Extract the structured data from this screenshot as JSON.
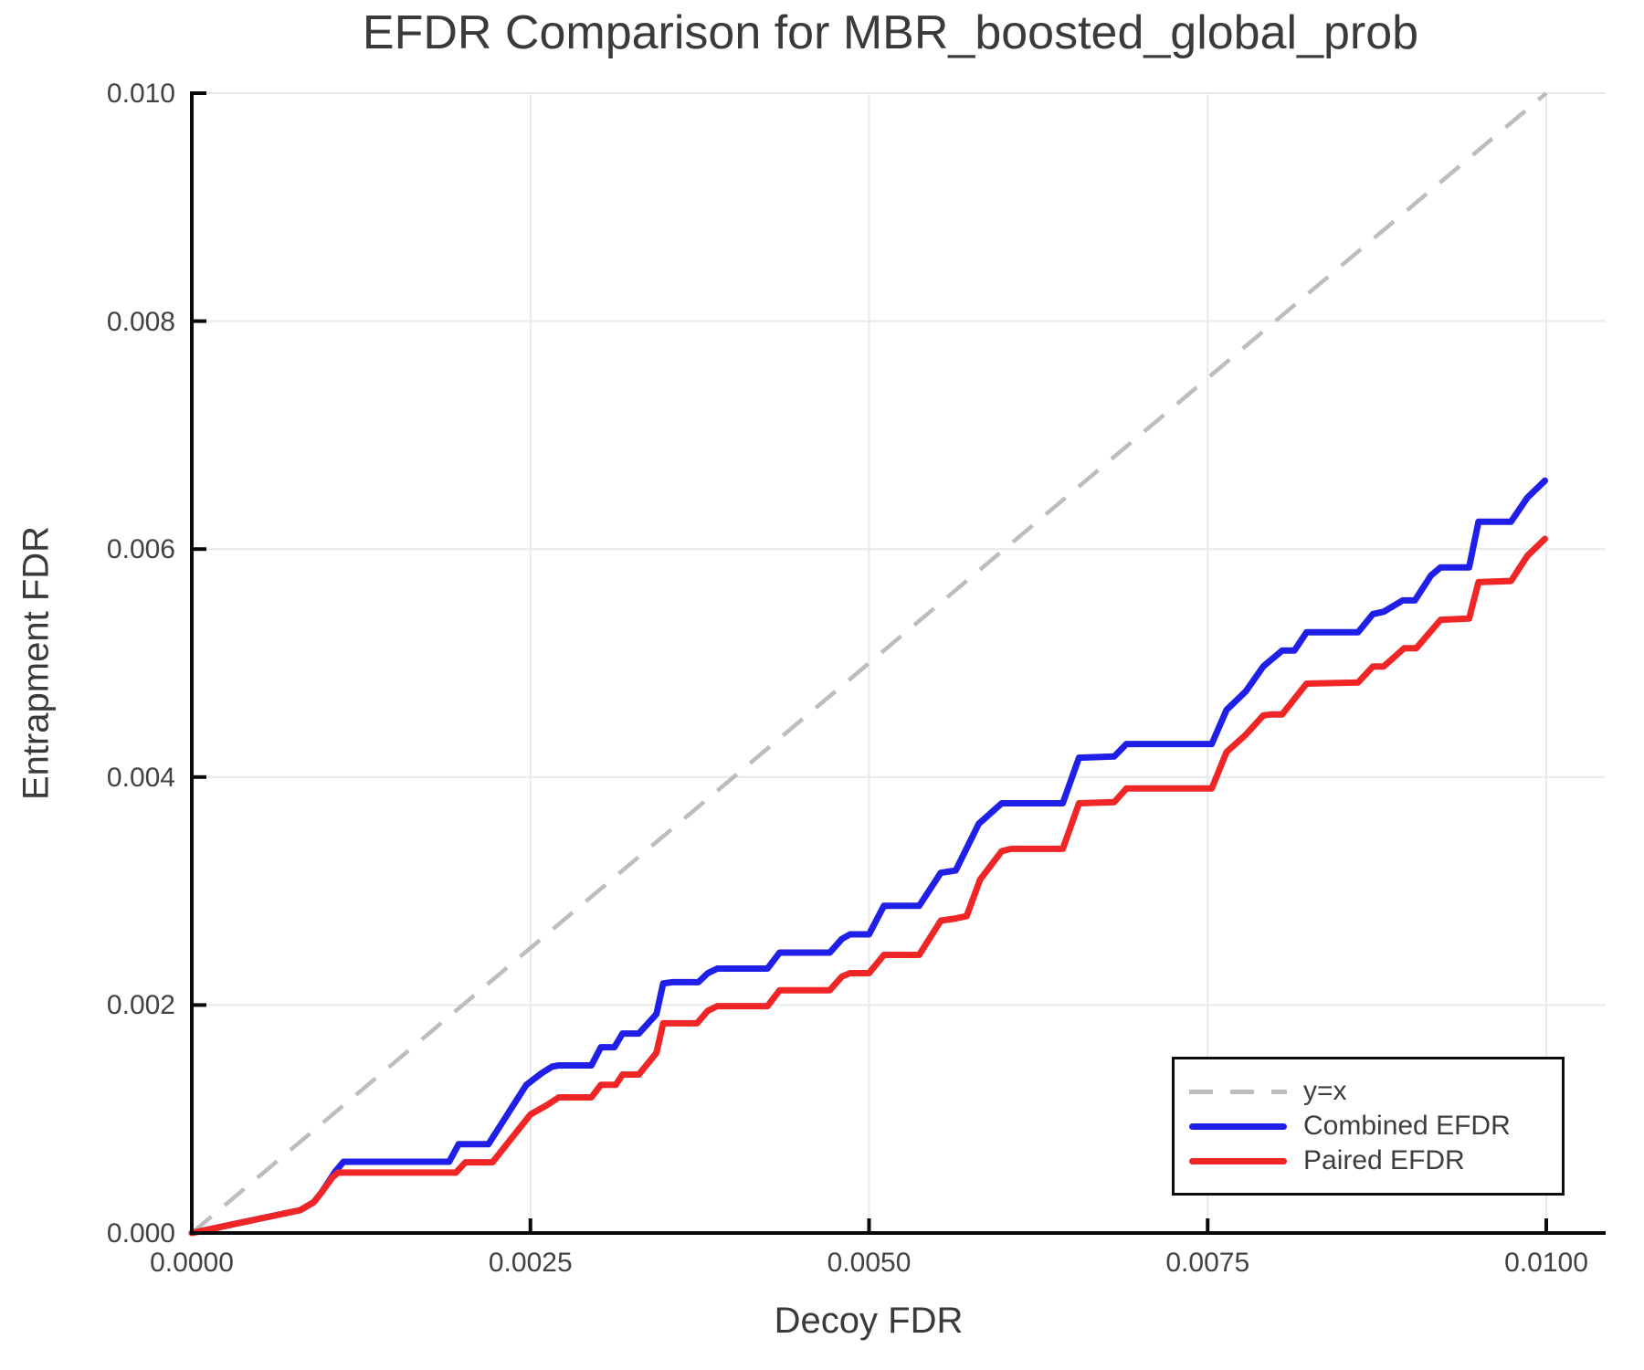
{
  "chart_data": {
    "type": "line",
    "title": "EFDR Comparison for MBR_boosted_global_prob",
    "xlabel": "Decoy FDR",
    "ylabel": "Entrapment FDR",
    "xlim": [
      0.0,
      0.01
    ],
    "ylim": [
      0.0,
      0.01
    ],
    "grid": true,
    "xticks": [
      0.0,
      0.0025,
      0.005,
      0.0075,
      0.01
    ],
    "xtick_labels": [
      "0.0000",
      "0.0025",
      "0.0050",
      "0.0075",
      "0.0100"
    ],
    "yticks": [
      0.0,
      0.002,
      0.004,
      0.006,
      0.008,
      0.01
    ],
    "ytick_labels": [
      "0.000",
      "0.002",
      "0.004",
      "0.006",
      "0.008",
      "0.010"
    ],
    "colors": {
      "grid": "#e9e9e9",
      "spine": "#0a0a0a",
      "reference": "#bdbdbd",
      "combined": "#1f1fe8",
      "paired": "#f02626"
    },
    "legend": {
      "position": "lower right",
      "entries": [
        {
          "label": "y=x"
        },
        {
          "label": "Combined EFDR"
        },
        {
          "label": "Paired EFDR"
        }
      ]
    },
    "series": [
      {
        "name": "y=x",
        "style": "dashed",
        "color": "#bdbdbd",
        "width": 4.5,
        "dash": "28 19",
        "points": [
          [
            0.0,
            0.0
          ],
          [
            0.01,
            0.01
          ]
        ]
      },
      {
        "name": "Combined EFDR",
        "style": "solid",
        "color": "#1f1fe8",
        "width": 7,
        "points": [
          [
            0.0,
            0.0
          ],
          [
            0.0008,
            0.0002
          ],
          [
            0.0009,
            0.00027
          ],
          [
            0.00096,
            0.00036
          ],
          [
            0.00106,
            0.00054
          ],
          [
            0.00112,
            0.000625
          ],
          [
            0.0019,
            0.000625
          ],
          [
            0.00197,
            0.00078
          ],
          [
            0.00219,
            0.00078
          ],
          [
            0.00247,
            0.0013
          ],
          [
            0.00258,
            0.0014
          ],
          [
            0.00266,
            0.00146
          ],
          [
            0.00271,
            0.00147
          ],
          [
            0.00295,
            0.00147
          ],
          [
            0.00302,
            0.00163
          ],
          [
            0.00312,
            0.00163
          ],
          [
            0.00318,
            0.00175
          ],
          [
            0.0033,
            0.00175
          ],
          [
            0.00343,
            0.00192
          ],
          [
            0.00348,
            0.00219
          ],
          [
            0.00355,
            0.0022
          ],
          [
            0.00374,
            0.0022
          ],
          [
            0.00381,
            0.00228
          ],
          [
            0.00388,
            0.00232
          ],
          [
            0.00425,
            0.00232
          ],
          [
            0.00434,
            0.00246
          ],
          [
            0.00471,
            0.00246
          ],
          [
            0.0048,
            0.00258
          ],
          [
            0.00486,
            0.00262
          ],
          [
            0.005,
            0.00262
          ],
          [
            0.00511,
            0.00287
          ],
          [
            0.00537,
            0.00287
          ],
          [
            0.00553,
            0.00316
          ],
          [
            0.00564,
            0.00318
          ],
          [
            0.00581,
            0.00359
          ],
          [
            0.00598,
            0.00377
          ],
          [
            0.00643,
            0.00377
          ],
          [
            0.00655,
            0.00417
          ],
          [
            0.00681,
            0.00418
          ],
          [
            0.0069,
            0.00429
          ],
          [
            0.00753,
            0.00429
          ],
          [
            0.00764,
            0.00459
          ],
          [
            0.00778,
            0.00475
          ],
          [
            0.00791,
            0.00497
          ],
          [
            0.00805,
            0.00511
          ],
          [
            0.00814,
            0.00511
          ],
          [
            0.00823,
            0.00527
          ],
          [
            0.00861,
            0.00527
          ],
          [
            0.00872,
            0.00543
          ],
          [
            0.0088,
            0.00545
          ],
          [
            0.00894,
            0.00555
          ],
          [
            0.00903,
            0.00555
          ],
          [
            0.00915,
            0.00577
          ],
          [
            0.00922,
            0.00584
          ],
          [
            0.00943,
            0.00584
          ],
          [
            0.0095,
            0.00624
          ],
          [
            0.00974,
            0.00624
          ],
          [
            0.00986,
            0.00645
          ],
          [
            0.00999,
            0.0066
          ]
        ]
      },
      {
        "name": "Paired EFDR",
        "style": "solid",
        "color": "#f02626",
        "width": 7,
        "points": [
          [
            0.0,
            0.0
          ],
          [
            0.0008,
            0.0002
          ],
          [
            0.0009,
            0.00027
          ],
          [
            0.00096,
            0.00036
          ],
          [
            0.00104,
            0.00049
          ],
          [
            0.00108,
            0.00053
          ],
          [
            0.00195,
            0.00053
          ],
          [
            0.00202,
            0.00062
          ],
          [
            0.00222,
            0.00062
          ],
          [
            0.0025,
            0.00104
          ],
          [
            0.00262,
            0.00112
          ],
          [
            0.00271,
            0.00119
          ],
          [
            0.00295,
            0.00119
          ],
          [
            0.00302,
            0.0013
          ],
          [
            0.00313,
            0.0013
          ],
          [
            0.00318,
            0.00139
          ],
          [
            0.0033,
            0.00139
          ],
          [
            0.00343,
            0.00158
          ],
          [
            0.00348,
            0.00184
          ],
          [
            0.00373,
            0.00184
          ],
          [
            0.00381,
            0.00195
          ],
          [
            0.00388,
            0.00199
          ],
          [
            0.00425,
            0.00199
          ],
          [
            0.00434,
            0.00213
          ],
          [
            0.00471,
            0.00213
          ],
          [
            0.0048,
            0.00225
          ],
          [
            0.00486,
            0.00228
          ],
          [
            0.005,
            0.00228
          ],
          [
            0.00511,
            0.00244
          ],
          [
            0.00537,
            0.00244
          ],
          [
            0.00553,
            0.00274
          ],
          [
            0.00564,
            0.00276
          ],
          [
            0.00572,
            0.00278
          ],
          [
            0.00582,
            0.0031
          ],
          [
            0.00598,
            0.00335
          ],
          [
            0.00605,
            0.00337
          ],
          [
            0.00643,
            0.00337
          ],
          [
            0.00655,
            0.00377
          ],
          [
            0.00681,
            0.00378
          ],
          [
            0.0069,
            0.0039
          ],
          [
            0.00753,
            0.0039
          ],
          [
            0.00764,
            0.00422
          ],
          [
            0.00778,
            0.00437
          ],
          [
            0.00791,
            0.00454
          ],
          [
            0.00797,
            0.00455
          ],
          [
            0.00805,
            0.00455
          ],
          [
            0.00823,
            0.00482
          ],
          [
            0.00861,
            0.00483
          ],
          [
            0.00872,
            0.00497
          ],
          [
            0.0088,
            0.00497
          ],
          [
            0.00895,
            0.00513
          ],
          [
            0.00904,
            0.00513
          ],
          [
            0.00922,
            0.00538
          ],
          [
            0.00943,
            0.00539
          ],
          [
            0.0095,
            0.00571
          ],
          [
            0.00974,
            0.00572
          ],
          [
            0.00986,
            0.00594
          ],
          [
            0.00999,
            0.00609
          ]
        ]
      }
    ]
  }
}
